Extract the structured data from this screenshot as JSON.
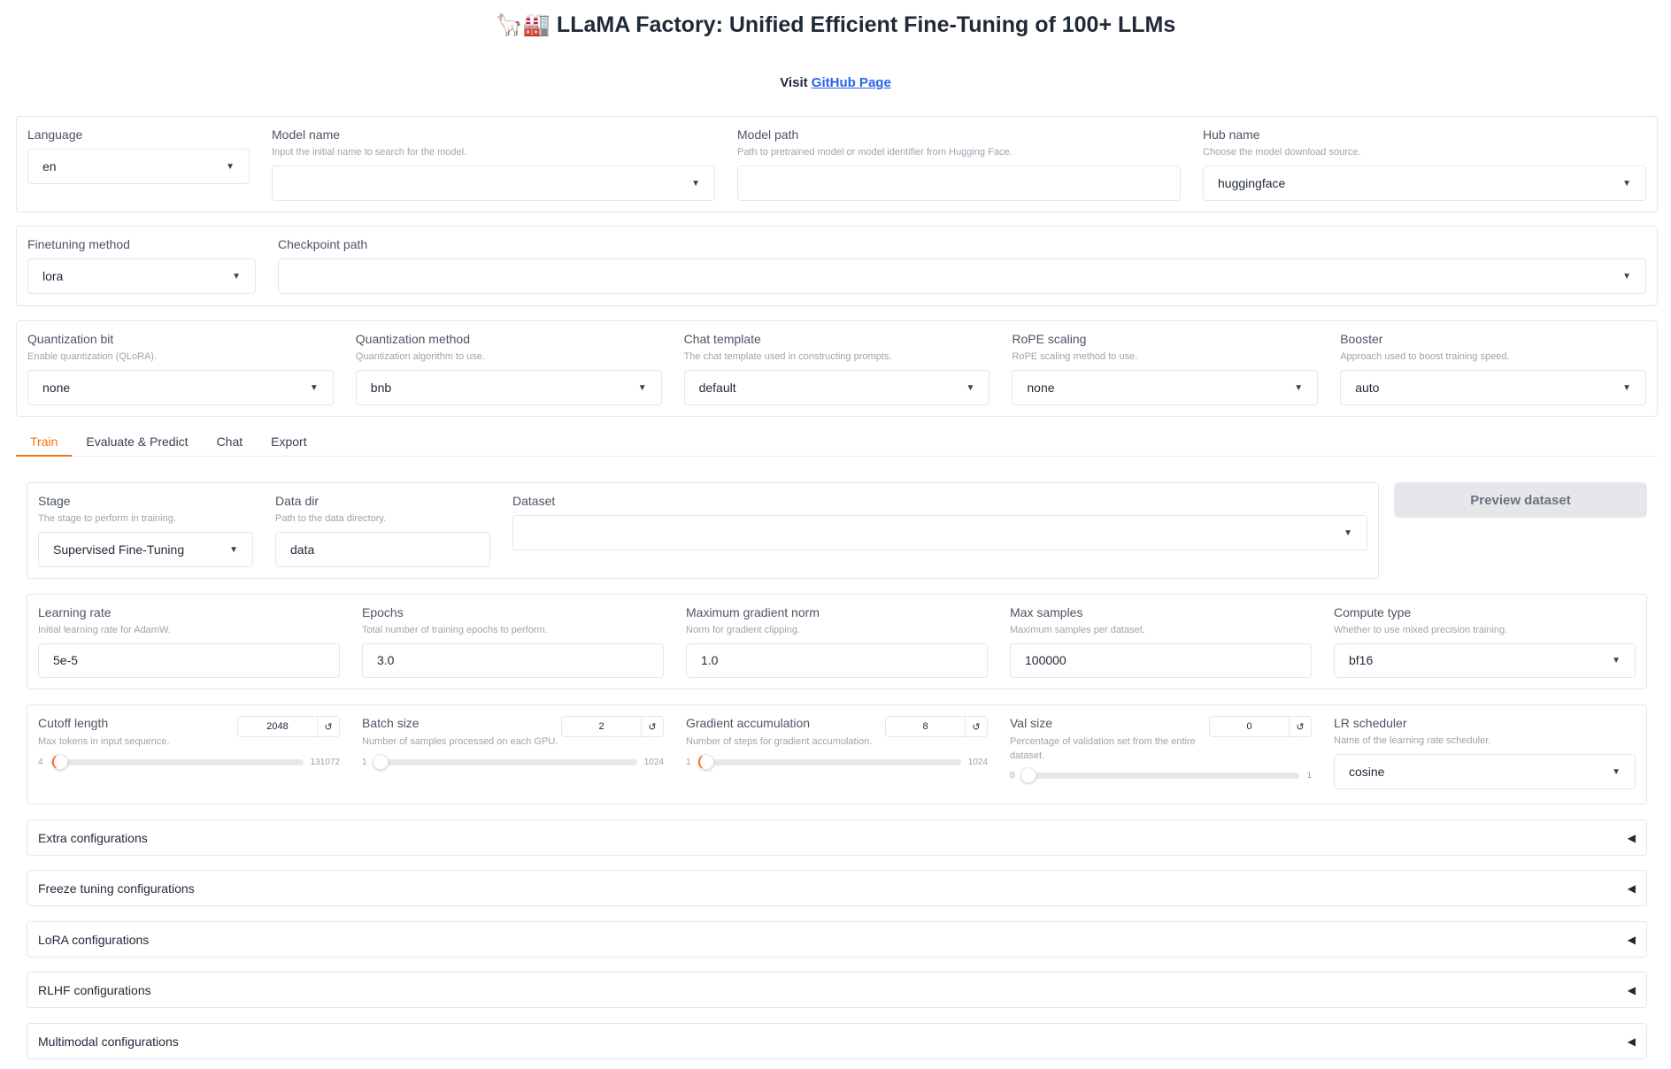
{
  "header": {
    "title": "🦙🏭 LLaMA Factory: Unified Efficient Fine-Tuning of 100+ LLMs",
    "visit": "Visit ",
    "link": "GitHub Page"
  },
  "top": {
    "language": {
      "label": "Language",
      "value": "en"
    },
    "model_name": {
      "label": "Model name",
      "desc": "Input the initial name to search for the model.",
      "value": ""
    },
    "model_path": {
      "label": "Model path",
      "desc": "Path to pretrained model or model identifier from Hugging Face.",
      "value": ""
    },
    "hub_name": {
      "label": "Hub name",
      "desc": "Choose the model download source.",
      "value": "huggingface"
    },
    "finetuning_method": {
      "label": "Finetuning method",
      "value": "lora"
    },
    "checkpoint_path": {
      "label": "Checkpoint path",
      "value": ""
    },
    "quantization_bit": {
      "label": "Quantization bit",
      "desc": "Enable quantization (QLoRA).",
      "value": "none"
    },
    "quantization_method": {
      "label": "Quantization method",
      "desc": "Quantization algorithm to use.",
      "value": "bnb"
    },
    "chat_template": {
      "label": "Chat template",
      "desc": "The chat template used in constructing prompts.",
      "value": "default"
    },
    "rope_scaling": {
      "label": "RoPE scaling",
      "desc": "RoPE scaling method to use.",
      "value": "none"
    },
    "booster": {
      "label": "Booster",
      "desc": "Approach used to boost training speed.",
      "value": "auto"
    }
  },
  "tabs": [
    {
      "label": "Train",
      "active": true
    },
    {
      "label": "Evaluate & Predict"
    },
    {
      "label": "Chat"
    },
    {
      "label": "Export"
    }
  ],
  "train": {
    "stage": {
      "label": "Stage",
      "desc": "The stage to perform in training.",
      "value": "Supervised Fine-Tuning"
    },
    "data_dir": {
      "label": "Data dir",
      "desc": "Path to the data directory.",
      "value": "data"
    },
    "dataset": {
      "label": "Dataset",
      "value": ""
    },
    "preview_button": "Preview dataset",
    "learning_rate": {
      "label": "Learning rate",
      "desc": "Initial learning rate for AdamW.",
      "value": "5e-5"
    },
    "epochs": {
      "label": "Epochs",
      "desc": "Total number of training epochs to perform.",
      "value": "3.0"
    },
    "max_grad_norm": {
      "label": "Maximum gradient norm",
      "desc": "Norm for gradient clipping.",
      "value": "1.0"
    },
    "max_samples": {
      "label": "Max samples",
      "desc": "Maximum samples per dataset.",
      "value": "100000"
    },
    "compute_type": {
      "label": "Compute type",
      "desc": "Whether to use mixed precision training.",
      "value": "bf16"
    },
    "cutoff_len": {
      "label": "Cutoff length",
      "desc": "Max tokens in input sequence.",
      "value": "2048",
      "min": "4",
      "max": "131072",
      "fraction": 0.0156
    },
    "batch_size": {
      "label": "Batch size",
      "desc": "Number of samples processed on each GPU.",
      "value": "2",
      "min": "1",
      "max": "1024",
      "fraction": 0.001
    },
    "grad_accum": {
      "label": "Gradient accumulation",
      "desc": "Number of steps for gradient accumulation.",
      "value": "8",
      "min": "1",
      "max": "1024",
      "fraction": 0.0068
    },
    "val_size": {
      "label": "Val size",
      "desc": "Percentage of validation set from the entire dataset.",
      "value": "0",
      "min": "0",
      "max": "1",
      "fraction": 0
    },
    "lr_scheduler": {
      "label": "LR scheduler",
      "desc": "Name of the learning rate scheduler.",
      "value": "cosine"
    },
    "accordions": [
      "Extra configurations",
      "Freeze tuning configurations",
      "LoRA configurations",
      "RLHF configurations",
      "Multimodal configurations"
    ]
  },
  "colors": {
    "accent": "#f97316",
    "link": "#2563eb",
    "button_bg": "#e5e7eb"
  },
  "icons": {
    "dropdown": "caret-down-icon",
    "reset": "reset-icon",
    "collapse": "triangle-left-icon"
  }
}
